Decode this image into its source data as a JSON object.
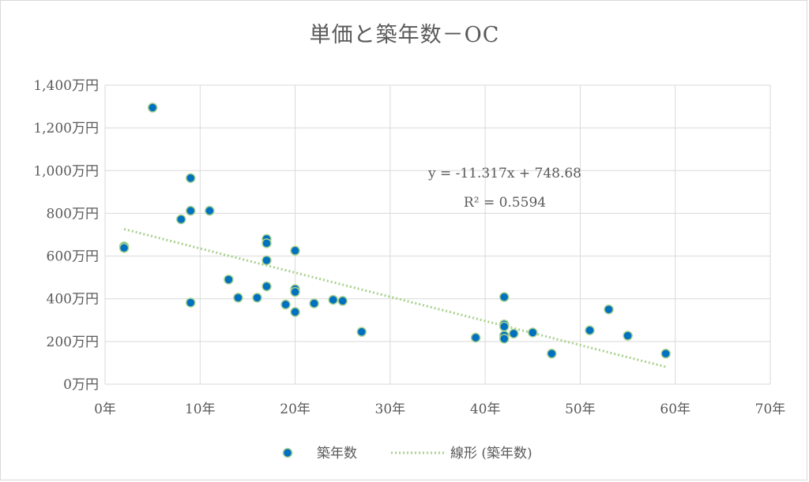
{
  "chart_data": {
    "type": "scatter",
    "title": "単価と築年数－OC",
    "xlabel": "",
    "ylabel": "",
    "x_ticks": [
      "0年",
      "10年",
      "20年",
      "30年",
      "40年",
      "50年",
      "60年",
      "70年"
    ],
    "y_ticks": [
      "0万円",
      "200万円",
      "400万円",
      "600万円",
      "800万円",
      "1,000万円",
      "1,200万円",
      "1,400万円"
    ],
    "xlim": [
      0,
      70
    ],
    "ylim": [
      0,
      1400
    ],
    "grid": true,
    "legend_position": "bottom",
    "series": [
      {
        "name": "築年数",
        "color": "#0070c0",
        "edge_color": "#a9d18e",
        "points": [
          [
            2,
            645
          ],
          [
            2,
            638
          ],
          [
            5,
            1295
          ],
          [
            8,
            772
          ],
          [
            9,
            965
          ],
          [
            9,
            812
          ],
          [
            9,
            382
          ],
          [
            11,
            812
          ],
          [
            13,
            490
          ],
          [
            14,
            405
          ],
          [
            16,
            405
          ],
          [
            17,
            680
          ],
          [
            17,
            660
          ],
          [
            17,
            580
          ],
          [
            17,
            458
          ],
          [
            19,
            373
          ],
          [
            20,
            625
          ],
          [
            20,
            445
          ],
          [
            20,
            432
          ],
          [
            20,
            338
          ],
          [
            22,
            378
          ],
          [
            24,
            395
          ],
          [
            25,
            390
          ],
          [
            27,
            245
          ],
          [
            39,
            218
          ],
          [
            42,
            408
          ],
          [
            42,
            280
          ],
          [
            42,
            270
          ],
          [
            42,
            228
          ],
          [
            42,
            213
          ],
          [
            43,
            237
          ],
          [
            45,
            242
          ],
          [
            47,
            143
          ],
          [
            51,
            252
          ],
          [
            53,
            350
          ],
          [
            55,
            227
          ],
          [
            59,
            143
          ]
        ]
      }
    ],
    "trendline": {
      "name": "線形 (築年数)",
      "type": "linear",
      "color": "#a9d18e",
      "slope": -11.317,
      "intercept": 748.68,
      "x_range": [
        2,
        59
      ],
      "equation_label": "y = -11.317x + 748.68",
      "r2_label": "R² = 0.5594"
    }
  }
}
